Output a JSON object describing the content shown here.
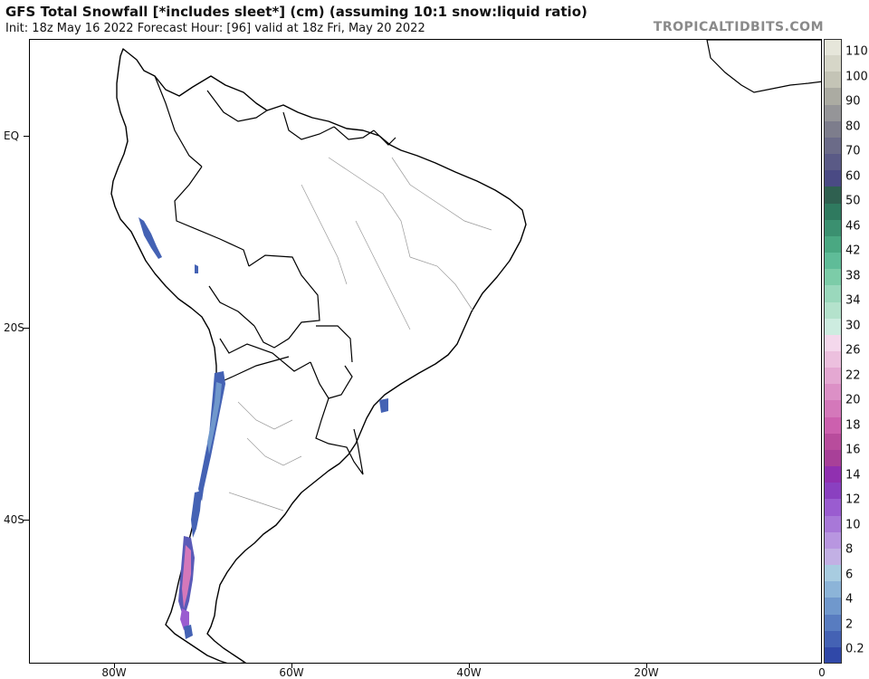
{
  "header": {
    "title": "GFS Total Snowfall [*includes sleet*] (cm) (assuming 10:1 snow:liquid ratio)",
    "subtitle": "Init: 18z May 16 2022   Forecast Hour: [96]   valid at 18z Fri, May 20 2022",
    "credit": "TROPICALTIDBITS.COM"
  },
  "axes": {
    "lat_labels": [
      "EQ",
      "20S",
      "40S"
    ],
    "lon_labels": [
      "80W",
      "60W",
      "40W",
      "20W",
      "0"
    ]
  },
  "colorbar": {
    "labels": [
      "110",
      "100",
      "90",
      "80",
      "70",
      "60",
      "50",
      "46",
      "42",
      "38",
      "34",
      "30",
      "26",
      "22",
      "20",
      "18",
      "16",
      "14",
      "12",
      "10",
      "8",
      "6",
      "4",
      "2",
      "0.2"
    ],
    "colors": [
      "#e6e6da",
      "#d6d6c8",
      "#c4c4b6",
      "#ababa2",
      "#959598",
      "#7d7d8c",
      "#6b6b88",
      "#5a5a86",
      "#4a4a84",
      "#2f6050",
      "#2f7a5f",
      "#3b9070",
      "#4aa882",
      "#5fbc98",
      "#7ccca8",
      "#9ad8bc",
      "#b4e2cc",
      "#cdece0",
      "#f4d8ec",
      "#ecc0de",
      "#e4a8d2",
      "#dc90c6",
      "#d478ba",
      "#cc60ae",
      "#b84c9c",
      "#a84098",
      "#9030b0",
      "#8a40c0",
      "#9a5cd0",
      "#a878d8",
      "#b896e0",
      "#c2b0e4",
      "#a8cce0",
      "#8cb4d8",
      "#7098cc",
      "#587cc0",
      "#4462b4",
      "#3048a8"
    ]
  },
  "map_legend_note": ""
}
